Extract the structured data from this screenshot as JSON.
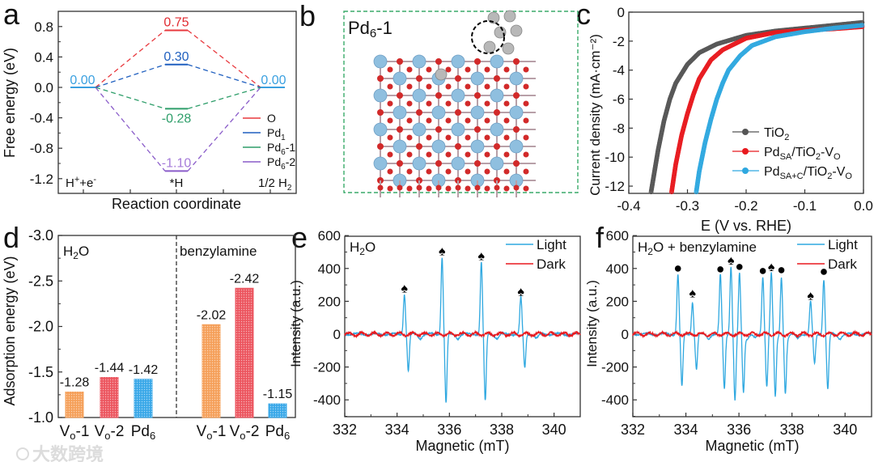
{
  "figure": {
    "panel_letters": [
      "a",
      "b",
      "c",
      "d",
      "e",
      "f"
    ],
    "watermark": "大数跨境"
  },
  "chart_data": [
    {
      "type": "line",
      "subtype": "free-energy-diagram",
      "xlabel": "Reaction coordinate",
      "ylabel": "Free energy (eV)",
      "ylim": [
        -1.4,
        1.0
      ],
      "yticks": [
        "0.8",
        "0.4",
        "0.0",
        "-0.4",
        "-0.8",
        "-1.2"
      ],
      "ytick_values": [
        0.8,
        0.4,
        0.0,
        -0.4,
        -0.8,
        -1.2
      ],
      "categories": [
        [
          {
            "text": "H"
          },
          {
            "text": "+",
            "sup": true
          },
          {
            "text": "+e"
          },
          {
            "text": "-",
            "sup": true
          }
        ],
        [
          {
            "text": "*H"
          }
        ],
        [
          {
            "text": "1/2 H"
          },
          {
            "text": "2",
            "sub": true
          }
        ]
      ],
      "series": [
        {
          "label": [
            {
              "text": "O"
            }
          ],
          "values": [
            0,
            0.75,
            0
          ],
          "value_label": "0.75",
          "color": "#e8383d",
          "label_color": "#e02a30"
        },
        {
          "label": [
            {
              "text": "Pd"
            },
            {
              "text": "1",
              "sub": true
            }
          ],
          "values": [
            0,
            0.3,
            0
          ],
          "value_label": "0.30",
          "color": "#1f5fbf",
          "label_color": "#1f5fbf"
        },
        {
          "label": [
            {
              "text": "Pd"
            },
            {
              "text": "6",
              "sub": true
            },
            {
              "text": "-1"
            }
          ],
          "values": [
            0,
            -0.28,
            0
          ],
          "value_label": "-0.28",
          "color": "#2e9e6a",
          "label_color": "#2e9e6a"
        },
        {
          "label": [
            {
              "text": "Pd"
            },
            {
              "text": "6",
              "sub": true
            },
            {
              "text": "-2"
            }
          ],
          "values": [
            0,
            -1.1,
            0
          ],
          "value_label": "-1.10",
          "color": "#8a5cc9",
          "label_color": "#a57ad9"
        }
      ],
      "endpoint_labels": [
        "0.00",
        "0.00"
      ],
      "endpoint_color": "#3aa0e0",
      "legend": "right"
    },
    {
      "type": "diagram",
      "title": [
        {
          "text": "Pd"
        },
        {
          "text": "6",
          "sub": true
        },
        {
          "text": "-1"
        }
      ],
      "border_color": "#3aaa6a",
      "atom_colors": {
        "Ti": "#8fbfdf",
        "O": "#d22a2a",
        "Pd": "#b8b8b8"
      }
    },
    {
      "type": "scatter",
      "xlabel": "E (V vs. RHE)",
      "ylabel": "Current density (mA·cm⁻²)",
      "xlim": [
        -0.4,
        0.0
      ],
      "ylim": [
        -12.5,
        0
      ],
      "xticks": [
        "-0.4",
        "-0.3",
        "-0.2",
        "-0.1",
        "0.0"
      ],
      "xtick_values": [
        -0.4,
        -0.3,
        -0.2,
        -0.1,
        0.0
      ],
      "yticks": [
        "0",
        "-2",
        "-4",
        "-6",
        "-8",
        "-10",
        "-12"
      ],
      "ytick_values": [
        0,
        -2,
        -4,
        -6,
        -8,
        -10,
        -12
      ],
      "legend": "bottom-right",
      "series": [
        {
          "label": [
            {
              "text": "TiO"
            },
            {
              "text": "2",
              "sub": true
            }
          ],
          "color": "#555555",
          "points": [
            [
              -0.362,
              -12.4
            ],
            [
              -0.35,
              -9.5
            ],
            [
              -0.34,
              -7.5
            ],
            [
              -0.33,
              -6.0
            ],
            [
              -0.32,
              -4.9
            ],
            [
              -0.3,
              -3.6
            ],
            [
              -0.28,
              -2.8
            ],
            [
              -0.25,
              -2.2
            ],
            [
              -0.2,
              -1.6
            ],
            [
              -0.15,
              -1.3
            ],
            [
              -0.1,
              -1.1
            ],
            [
              -0.05,
              -0.9
            ],
            [
              0,
              -0.7
            ]
          ]
        },
        {
          "label": [
            {
              "text": "Pd"
            },
            {
              "text": "SA",
              "sub": true
            },
            {
              "text": "/TiO"
            },
            {
              "text": "2",
              "sub": true
            },
            {
              "text": "-V"
            },
            {
              "text": "O",
              "sub": true
            }
          ],
          "color": "#e8191e",
          "points": [
            [
              -0.327,
              -12.4
            ],
            [
              -0.32,
              -10.5
            ],
            [
              -0.31,
              -8.5
            ],
            [
              -0.3,
              -7.0
            ],
            [
              -0.29,
              -5.7
            ],
            [
              -0.28,
              -4.6
            ],
            [
              -0.26,
              -3.3
            ],
            [
              -0.24,
              -2.6
            ],
            [
              -0.2,
              -1.8
            ],
            [
              -0.15,
              -1.4
            ],
            [
              -0.1,
              -1.25
            ],
            [
              -0.05,
              -1.15
            ],
            [
              0,
              -1.0
            ]
          ]
        },
        {
          "label": [
            {
              "text": "Pd"
            },
            {
              "text": "SA+C",
              "sub": true
            },
            {
              "text": "/TiO"
            },
            {
              "text": "2",
              "sub": true
            },
            {
              "text": "-V"
            },
            {
              "text": "O",
              "sub": true
            }
          ],
          "color": "#2fa8e0",
          "points": [
            [
              -0.285,
              -12.4
            ],
            [
              -0.28,
              -11.0
            ],
            [
              -0.27,
              -9.0
            ],
            [
              -0.26,
              -7.4
            ],
            [
              -0.25,
              -6.0
            ],
            [
              -0.24,
              -4.9
            ],
            [
              -0.23,
              -4.0
            ],
            [
              -0.21,
              -3.0
            ],
            [
              -0.19,
              -2.3
            ],
            [
              -0.15,
              -1.7
            ],
            [
              -0.1,
              -1.35
            ],
            [
              -0.05,
              -1.1
            ],
            [
              0,
              -0.9
            ]
          ]
        }
      ]
    },
    {
      "type": "bar",
      "ylabel": "Adsorption energy (eV)",
      "ylim": [
        -3.0,
        -1.0
      ],
      "yticks": [
        "-3.0",
        "-2.5",
        "-2.0",
        "-1.5",
        "-1.0"
      ],
      "ytick_values": [
        -3.0,
        -2.5,
        -2.0,
        -1.5,
        -1.0
      ],
      "groups": [
        {
          "name": [
            {
              "text": "H"
            },
            {
              "text": "2",
              "sub": true
            },
            {
              "text": "O"
            }
          ],
          "bars": [
            {
              "category": [
                {
                  "text": "V"
                },
                {
                  "text": "o",
                  "sub": true
                },
                {
                  "text": "-1"
                }
              ],
              "value": -1.28,
              "label": "-1.28",
              "color": "#f5a05a"
            },
            {
              "category": [
                {
                  "text": "V"
                },
                {
                  "text": "o",
                  "sub": true
                },
                {
                  "text": "-2"
                }
              ],
              "value": -1.44,
              "label": "-1.44",
              "color": "#ec5660"
            },
            {
              "category": [
                {
                  "text": "Pd"
                },
                {
                  "text": "6",
                  "sub": true
                }
              ],
              "value": -1.42,
              "label": "-1.42",
              "color": "#3aa8e8"
            }
          ]
        },
        {
          "name": [
            {
              "text": "benzylamine"
            }
          ],
          "bars": [
            {
              "category": [
                {
                  "text": "V"
                },
                {
                  "text": "o",
                  "sub": true
                },
                {
                  "text": "-1"
                }
              ],
              "value": -2.02,
              "label": "-2.02",
              "color": "#f5a05a"
            },
            {
              "category": [
                {
                  "text": "V"
                },
                {
                  "text": "o",
                  "sub": true
                },
                {
                  "text": "-2"
                }
              ],
              "value": -2.42,
              "label": "-2.42",
              "color": "#ec5660"
            },
            {
              "category": [
                {
                  "text": "Pd"
                },
                {
                  "text": "6",
                  "sub": true
                }
              ],
              "value": -1.15,
              "label": "-1.15",
              "color": "#3aa8e8"
            }
          ]
        }
      ]
    },
    {
      "type": "line",
      "title": [
        {
          "text": "H"
        },
        {
          "text": "2",
          "sub": true
        },
        {
          "text": "O"
        }
      ],
      "xlabel": "Magnetic (mT)",
      "ylabel": "Intensity (a.u.)",
      "xlim": [
        332,
        341
      ],
      "ylim": [
        -500,
        600
      ],
      "xticks": [
        "332",
        "334",
        "336",
        "338",
        "340"
      ],
      "xtick_values": [
        332,
        334,
        336,
        338,
        340
      ],
      "yticks": [
        "600",
        "400",
        "200",
        "0",
        "-200",
        "-400"
      ],
      "ytick_values": [
        600,
        400,
        200,
        0,
        -200,
        -400
      ],
      "legend": "top-right",
      "series": [
        {
          "name": "Light",
          "color": "#2fa8e0",
          "peaks": [
            [
              334.28,
              245,
              -225
            ],
            [
              335.72,
              470,
              -420
            ],
            [
              337.22,
              440,
              -410
            ],
            [
              338.73,
              225,
              -205
            ]
          ]
        },
        {
          "name": "Dark",
          "color": "#e8191e",
          "peaks": []
        }
      ],
      "markers": [
        {
          "x": 334.28,
          "y": 245,
          "symbol": "spade"
        },
        {
          "x": 335.72,
          "y": 470,
          "symbol": "spade"
        },
        {
          "x": 337.22,
          "y": 440,
          "symbol": "spade"
        },
        {
          "x": 338.73,
          "y": 225,
          "symbol": "spade"
        }
      ]
    },
    {
      "type": "line",
      "title": [
        {
          "text": "H"
        },
        {
          "text": "2",
          "sub": true
        },
        {
          "text": "O + benzylamine"
        }
      ],
      "xlabel": "Magnetic (mT)",
      "ylabel": "Intensity (a.u.)",
      "xlim": [
        332,
        341
      ],
      "ylim": [
        -500,
        600
      ],
      "xticks": [
        "332",
        "334",
        "336",
        "338",
        "340"
      ],
      "xtick_values": [
        332,
        334,
        336,
        338,
        340
      ],
      "yticks": [
        "600",
        "400",
        "200",
        "0",
        "-200",
        "-400"
      ],
      "ytick_values": [
        600,
        400,
        200,
        0,
        -200,
        -400
      ],
      "legend": "top-right",
      "series": [
        {
          "name": "Light",
          "color": "#2fa8e0",
          "peaks": [
            [
              333.7,
              365,
              -320
            ],
            [
              334.25,
              215,
              -205
            ],
            [
              335.3,
              360,
              -335
            ],
            [
              335.7,
              415,
              -385
            ],
            [
              336.02,
              375,
              -350
            ],
            [
              336.9,
              350,
              -315
            ],
            [
              337.22,
              375,
              -380
            ],
            [
              337.6,
              355,
              -340
            ],
            [
              338.7,
              200,
              -180
            ],
            [
              339.2,
              345,
              -320
            ]
          ]
        },
        {
          "name": "Dark",
          "color": "#e8191e",
          "peaks": []
        }
      ],
      "markers": [
        {
          "x": 333.7,
          "y": 365,
          "symbol": "dot"
        },
        {
          "x": 334.25,
          "y": 215,
          "symbol": "spade"
        },
        {
          "x": 335.3,
          "y": 360,
          "symbol": "dot"
        },
        {
          "x": 335.7,
          "y": 415,
          "symbol": "spade"
        },
        {
          "x": 336.02,
          "y": 375,
          "symbol": "dot"
        },
        {
          "x": 336.9,
          "y": 350,
          "symbol": "dot"
        },
        {
          "x": 337.22,
          "y": 375,
          "symbol": "spade"
        },
        {
          "x": 337.6,
          "y": 355,
          "symbol": "dot"
        },
        {
          "x": 338.7,
          "y": 200,
          "symbol": "spade"
        },
        {
          "x": 339.2,
          "y": 345,
          "symbol": "dot"
        }
      ]
    }
  ]
}
